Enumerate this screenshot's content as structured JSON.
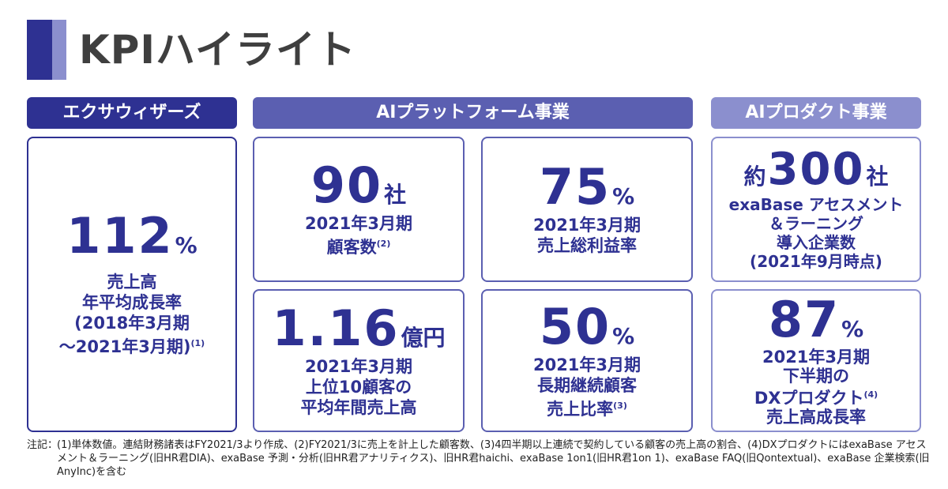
{
  "title": "KPIハイライト",
  "headers": {
    "exa": "エクサウィザーズ",
    "ai_platform": "AIプラットフォーム事業",
    "ai_product": "AIプロダクト事業"
  },
  "cards": {
    "growth": {
      "value": "112",
      "unit": "%",
      "lines": [
        "売上高",
        "年平均成長率",
        "(2018年3月期"
      ],
      "last_line": "～2021年3月期)",
      "note": "(1)"
    },
    "customers": {
      "value": "90",
      "unit": "社",
      "line1": "2021年3月期",
      "line2": "顧客数",
      "note": "(2)"
    },
    "margin": {
      "value": "75",
      "unit": "%",
      "line1": "2021年3月期",
      "line2": "売上総利益率"
    },
    "companies": {
      "prefix": "約",
      "value": "300",
      "unit": "社",
      "lines": [
        "exaBase アセスメント",
        "＆ラーニング",
        "導入企業数",
        "(2021年9月時点)"
      ]
    },
    "top10": {
      "value": "1.16",
      "unit": "億円",
      "lines": [
        "2021年3月期",
        "上位10顧客の",
        "平均年間売上高"
      ]
    },
    "longterm": {
      "value": "50",
      "unit": "%",
      "line1": "2021年3月期",
      "line2": "長期継続顧客",
      "line3": "売上比率",
      "note": "(3)"
    },
    "dx": {
      "value": "87",
      "unit": "%",
      "line1": "2021年3月期",
      "line2": "下半期の",
      "line3": "DXプロダクト",
      "note": "(4)",
      "line4": "売上高成長率"
    }
  },
  "notes": {
    "label": "注記：",
    "text": "(1)単体数値。連結財務諸表はFY2021/3より作成、(2)FY2021/3に売上を計上した顧客数、(3)4四半期以上連続で契約している顧客の売上高の割合、(4)DXプロダクトにはexaBase アセスメント＆ラーニング(旧HR君DIA)、exaBase 予測・分析(旧HR君アナリティクス)、旧HR君haichi、exaBase 1on1(旧HR君1on 1)、exaBase FAQ(旧Qontextual)、exaBase 企業検索(旧AnyInc)を含む"
  }
}
